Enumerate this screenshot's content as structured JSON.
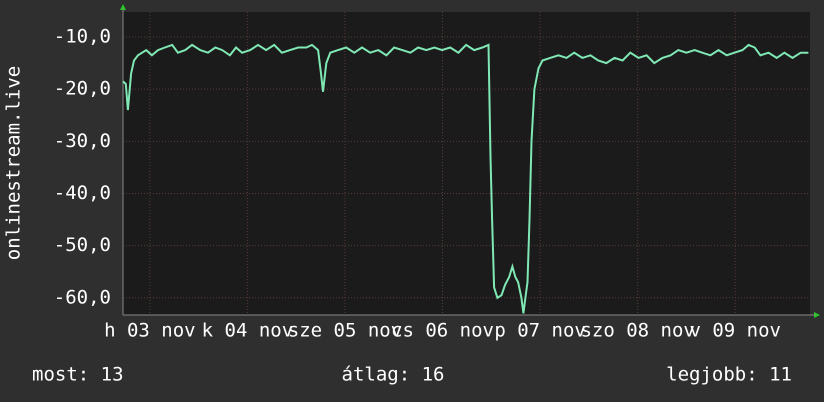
{
  "chart_data": {
    "type": "line",
    "y_label": "onlinestream.live",
    "x": [
      0,
      0.7,
      1.2,
      2.0,
      2.7,
      3.7,
      4.7,
      5.7,
      7.1,
      8.6,
      10.3,
      12.1,
      13.5,
      15.3,
      17.0,
      19.0,
      20.9,
      22.7,
      24.4,
      26.3,
      27.8,
      29.3,
      31.3,
      33.2,
      35.2,
      37.2,
      39.1,
      41.1,
      43.1,
      45.1,
      46.5,
      48.0,
      48.7,
      49.2,
      50.0,
      51.0,
      52.9,
      54.9,
      56.9,
      58.8,
      60.8,
      62.8,
      64.8,
      66.7,
      68.7,
      70.7,
      72.6,
      74.6,
      76.6,
      78.5,
      80.5,
      82.5,
      84.4,
      86.4,
      88.4,
      89.9,
      90.4,
      90.8,
      91.3,
      92.1,
      93.1,
      94.0,
      95.0,
      95.8,
      96.5,
      97.2,
      98.0,
      98.5,
      99.0,
      99.5,
      100.0,
      100.5,
      101.2,
      102.2,
      103.2,
      105.1,
      107.1,
      109.1,
      111.0,
      113.0,
      115.0,
      116.9,
      118.9,
      120.9,
      122.9,
      124.8,
      126.8,
      128.8,
      130.7,
      132.7,
      134.7,
      136.6,
      138.6,
      140.6,
      142.5,
      144.5,
      146.5,
      148.5,
      150.4,
      152.4,
      153.9,
      155.4,
      156.8,
      158.8,
      160.8,
      162.7,
      164.7,
      166.7,
      168.6
    ],
    "series": [
      {
        "name": "onlinestream.live",
        "color": "#7fe8b4",
        "values": [
          -18.5,
          -19,
          -24,
          -17,
          -14.5,
          -13.5,
          -13,
          -12.5,
          -13.5,
          -12.5,
          -12,
          -11.5,
          -13,
          -12.5,
          -11.5,
          -12.5,
          -13,
          -12,
          -12.5,
          -13.5,
          -12,
          -13,
          -12.5,
          -11.5,
          -12.5,
          -11.5,
          -13,
          -12.5,
          -12,
          -12,
          -11.5,
          -12.5,
          -17,
          -20.5,
          -15,
          -13,
          -12.5,
          -12,
          -13,
          -12,
          -13,
          -12.5,
          -13.5,
          -12,
          -12.5,
          -13,
          -12,
          -12.5,
          -12,
          -12.5,
          -12,
          -13,
          -11.5,
          -12.5,
          -12,
          -11.5,
          -33,
          -45,
          -58,
          -60,
          -59.5,
          -57.5,
          -56,
          -54,
          -56,
          -57,
          -60,
          -63,
          -60,
          -57,
          -45,
          -30,
          -20,
          -16,
          -14.5,
          -14,
          -13.5,
          -14,
          -13,
          -14,
          -13.5,
          -14.5,
          -15,
          -14,
          -14.5,
          -13,
          -14,
          -13.5,
          -15,
          -14,
          -13.5,
          -12.5,
          -13,
          -12.5,
          -13,
          -13.5,
          -12.5,
          -13.5,
          -13,
          -12.5,
          -11.5,
          -12,
          -13.5,
          -13,
          -14,
          -13,
          -14,
          -13,
          -13
        ]
      }
    ],
    "xlim": [
      0,
      169
    ],
    "xticks": [
      {
        "value": 6.6,
        "label": "h 03 nov"
      },
      {
        "value": 30.6,
        "label": "k 04 nov"
      },
      {
        "value": 54.6,
        "label": "sze 05 nov"
      },
      {
        "value": 78.6,
        "label": "cs 06 nov"
      },
      {
        "value": 102.6,
        "label": "p 07 nov"
      },
      {
        "value": 126.6,
        "label": "szo 08 nov"
      },
      {
        "value": 150.6,
        "label": "v 09 nov"
      }
    ],
    "ylim": [
      -63.3,
      -5.2
    ],
    "yticks": [
      {
        "value": -10,
        "label": "-10,0"
      },
      {
        "value": -20,
        "label": "-20,0"
      },
      {
        "value": -30,
        "label": "-30,0"
      },
      {
        "value": -40,
        "label": "-40,0"
      },
      {
        "value": -50,
        "label": "-50,0"
      },
      {
        "value": -60,
        "label": "-60,0"
      }
    ],
    "grid": true,
    "stats": [
      "most: 13",
      "átlag: 16",
      "legjobb: 11"
    ]
  }
}
